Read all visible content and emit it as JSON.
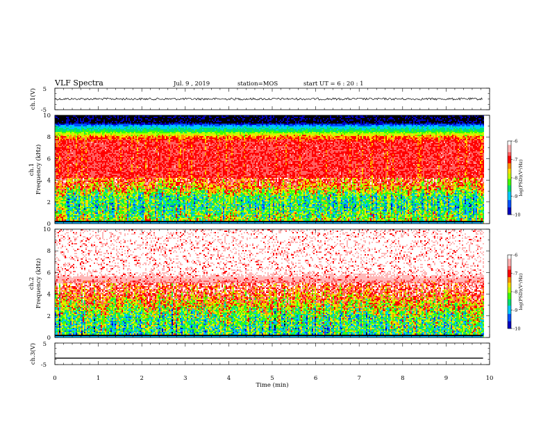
{
  "header": {
    "title": "VLF Spectra",
    "date": "Jul. 9 , 2019",
    "station": "station=MOS",
    "start_time": "start UT =  6 : 20 : 1"
  },
  "chart_data": [
    {
      "type": "line",
      "panel": "ch1-waveform",
      "ylabel": "ch.1(V)",
      "ylim": [
        -5,
        5
      ],
      "yticks": [
        "5",
        "-5"
      ],
      "series": [
        {
          "x": [
            0,
            9.85
          ],
          "y": [
            0,
            0
          ]
        }
      ]
    },
    {
      "type": "heatmap",
      "panel": "ch1-spectrogram",
      "ylabel_top": "ch.1",
      "ylabel": "Frequency (kHz)",
      "ylim": [
        0,
        10
      ],
      "yticks": [
        "0",
        "2",
        "4",
        "6",
        "8",
        "10"
      ],
      "xlim": [
        0,
        10
      ],
      "data_end_min": 9.85,
      "profile": [
        {
          "f": 0.0,
          "v": 0.7
        },
        {
          "f": 0.5,
          "v": 0.6
        },
        {
          "f": 1.5,
          "v": 0.45
        },
        {
          "f": 2.5,
          "v": 0.5
        },
        {
          "f": 3.5,
          "v": 0.85
        },
        {
          "f": 4.5,
          "v": 1.0
        },
        {
          "f": 7.5,
          "v": 1.0
        },
        {
          "f": 8.0,
          "v": 0.85
        },
        {
          "f": 8.5,
          "v": 0.5
        },
        {
          "f": 9.0,
          "v": 0.3
        },
        {
          "f": 9.3,
          "v": 0.0
        },
        {
          "f": 10.0,
          "v": 0.0
        }
      ],
      "colorbar": {
        "label": "log(PSD)(V²/Hz)",
        "ticks": [
          "-6",
          "-7",
          "-8",
          "-9",
          "-10"
        ],
        "range": [
          -10,
          -6
        ]
      }
    },
    {
      "type": "heatmap",
      "panel": "ch2-spectrogram",
      "ylabel_top": "ch.2",
      "ylabel": "Frequency (kHz)",
      "ylim": [
        0,
        10
      ],
      "yticks": [
        "0",
        "2",
        "4",
        "6",
        "8",
        "10"
      ],
      "xlim": [
        0,
        10
      ],
      "data_end_min": 9.85,
      "profile": [
        {
          "f": 0.0,
          "v": 0.45
        },
        {
          "f": 1.0,
          "v": 0.5
        },
        {
          "f": 2.0,
          "v": 0.55
        },
        {
          "f": 3.0,
          "v": 0.75
        },
        {
          "f": 4.0,
          "v": 0.95
        },
        {
          "f": 5.0,
          "v": 1.1
        },
        {
          "f": 6.0,
          "v": 1.25
        },
        {
          "f": 10.0,
          "v": 1.25
        }
      ],
      "colorbar": {
        "label": "log(PSD)(V²/Hz)",
        "ticks": [
          "-6",
          "-7",
          "-8",
          "-9",
          "-10"
        ],
        "range": [
          -10,
          -6
        ]
      }
    },
    {
      "type": "line",
      "panel": "ch3-waveform",
      "ylabel": "ch.3(V)",
      "ylim": [
        -5,
        5
      ],
      "yticks": [
        "5",
        "-5"
      ],
      "xlabel": "Time (min)",
      "xlim": [
        0,
        10
      ],
      "xticks": [
        "0",
        "1",
        "2",
        "3",
        "4",
        "5",
        "6",
        "7",
        "8",
        "9",
        "10"
      ],
      "series": [
        {
          "x": [
            0,
            9.85
          ],
          "y": [
            -2,
            -2
          ]
        }
      ]
    }
  ],
  "colors": {
    "colormap": [
      "#000080",
      "#0000ff",
      "#00c0ff",
      "#00ff40",
      "#a0ff00",
      "#ffff00",
      "#ff8000",
      "#ff0000",
      "#ffffff"
    ]
  }
}
